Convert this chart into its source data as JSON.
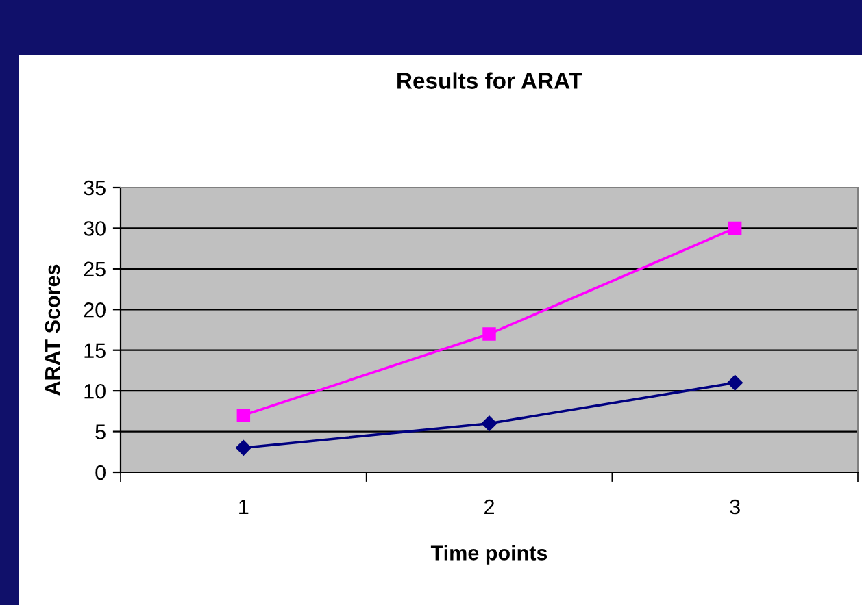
{
  "chart_data": {
    "type": "line",
    "title": "Results for ARAT",
    "xlabel": "Time points",
    "ylabel": "ARAT Scores",
    "categories": [
      "1",
      "2",
      "3"
    ],
    "series": [
      {
        "color": "#ff00ff",
        "marker": "square",
        "values": [
          7,
          17,
          30
        ]
      },
      {
        "color": "#000080",
        "marker": "diamond",
        "values": [
          3,
          6,
          11
        ]
      }
    ],
    "ylim": [
      0,
      35
    ],
    "yticks": [
      0,
      5,
      10,
      15,
      20,
      25,
      30,
      35
    ],
    "grid": "y",
    "legend": false,
    "line_style": "solid"
  }
}
